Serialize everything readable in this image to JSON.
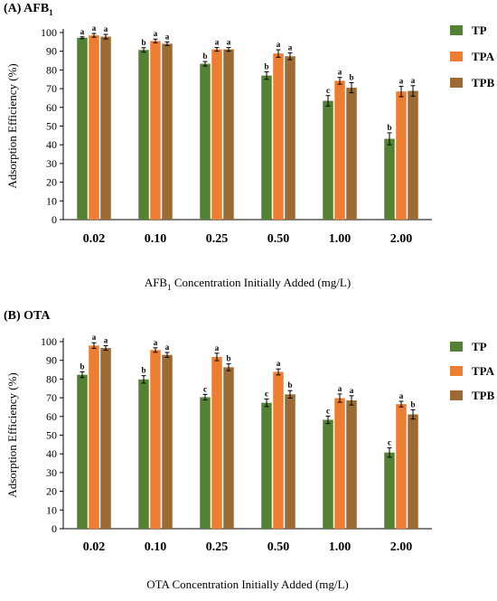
{
  "chart_data": [
    {
      "type": "bar",
      "panel_title": "(B) OTA",
      "title_main": "(A) AFB",
      "title_sub": "1",
      "categories": [
        "0.02",
        "0.10",
        "0.25",
        "0.50",
        "1.00",
        "2.00"
      ],
      "xlabel_main": "AFB",
      "xlabel_sub": "1",
      "xlabel_rest": " Concentration Initially Added (mg/L)",
      "ylabel": "Adsorption Efficiency (%)",
      "ylim": [
        0,
        100
      ],
      "yticks": [
        0,
        10,
        20,
        30,
        40,
        50,
        60,
        70,
        80,
        90,
        100
      ],
      "grid": false,
      "legend_position": "right",
      "series": [
        {
          "name": "TP",
          "color": "#548235",
          "values": [
            97.2,
            90.7,
            83.3,
            77.0,
            63.5,
            43.2
          ],
          "errors": [
            0.5,
            1.2,
            1.2,
            2.0,
            2.8,
            3.2
          ],
          "sig": [
            "a",
            "b",
            "b",
            "b",
            "c",
            "b"
          ]
        },
        {
          "name": "TPA",
          "color": "#ED7D31",
          "values": [
            98.5,
            95.5,
            91.0,
            88.8,
            74.2,
            68.5
          ],
          "errors": [
            1.0,
            1.0,
            1.0,
            2.0,
            1.8,
            2.8
          ],
          "sig": [
            "a",
            "a",
            "a",
            "a",
            "a",
            "a"
          ]
        },
        {
          "name": "TPB",
          "color": "#9C6A33",
          "values": [
            97.8,
            94.0,
            91.0,
            87.3,
            70.5,
            68.8
          ],
          "errors": [
            1.2,
            1.0,
            1.0,
            1.8,
            2.7,
            2.8
          ],
          "sig": [
            "a",
            "a",
            "a",
            "a",
            "b",
            "a"
          ]
        }
      ]
    },
    {
      "type": "bar",
      "title": "(B) OTA",
      "categories": [
        "0.02",
        "0.10",
        "0.25",
        "0.50",
        "1.00",
        "2.00"
      ],
      "xlabel": "OTA Concentration Initially Added (mg/L)",
      "ylabel": "Adsorption Efficiency (%)",
      "ylim": [
        0,
        100
      ],
      "yticks": [
        0,
        10,
        20,
        30,
        40,
        50,
        60,
        70,
        80,
        90,
        100
      ],
      "grid": false,
      "legend_position": "right",
      "series": [
        {
          "name": "TP",
          "color": "#548235",
          "values": [
            82.3,
            79.8,
            70.3,
            67.3,
            58.2,
            40.7
          ],
          "errors": [
            1.5,
            2.0,
            1.5,
            2.0,
            2.0,
            2.5
          ],
          "sig": [
            "b",
            "b",
            "c",
            "c",
            "c",
            "c"
          ]
        },
        {
          "name": "TPA",
          "color": "#ED7D31",
          "values": [
            97.9,
            95.5,
            91.8,
            83.8,
            69.8,
            66.6
          ],
          "errors": [
            1.5,
            1.2,
            2.0,
            1.6,
            2.2,
            1.5
          ],
          "sig": [
            "a",
            "a",
            "a",
            "a",
            "a",
            "a"
          ]
        },
        {
          "name": "TPB",
          "color": "#9C6A33",
          "values": [
            96.6,
            92.9,
            86.3,
            71.8,
            68.6,
            61.1
          ],
          "errors": [
            1.2,
            1.3,
            1.8,
            2.0,
            2.5,
            2.5
          ],
          "sig": [
            "a",
            "a",
            "b",
            "b",
            "a",
            "b"
          ]
        }
      ]
    }
  ]
}
